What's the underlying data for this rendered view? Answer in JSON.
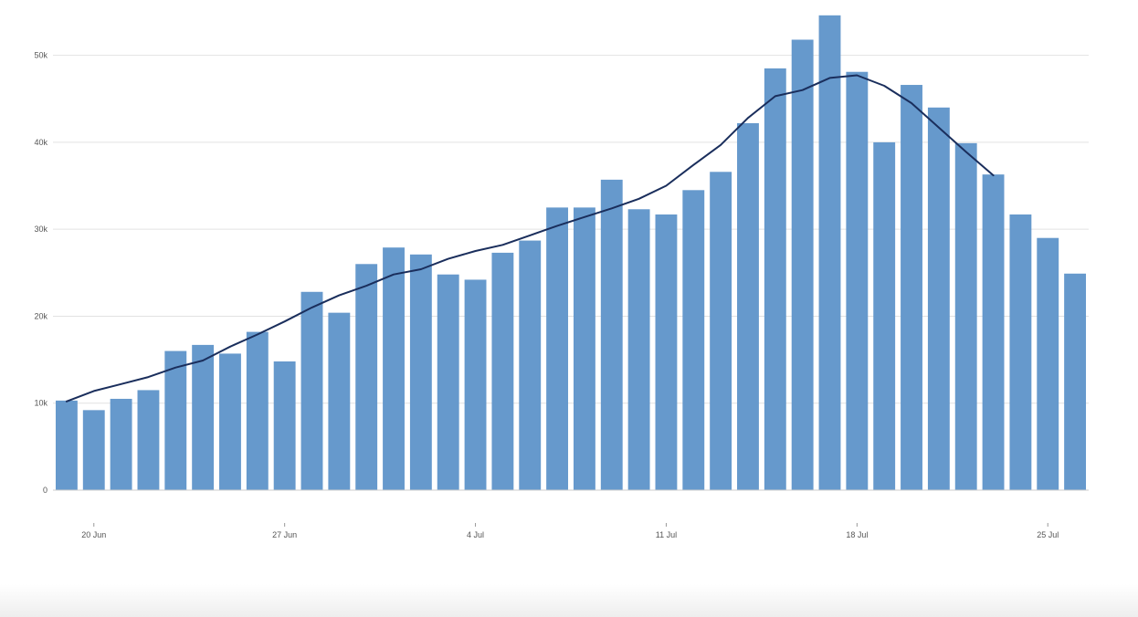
{
  "chart_data": {
    "type": "bar",
    "title": "",
    "xlabel": "",
    "ylabel": "",
    "ylim": [
      0,
      55000
    ],
    "y_ticks": [
      {
        "value": 0,
        "label": "0"
      },
      {
        "value": 10000,
        "label": "10k"
      },
      {
        "value": 20000,
        "label": "20k"
      },
      {
        "value": 30000,
        "label": "30k"
      },
      {
        "value": 40000,
        "label": "40k"
      },
      {
        "value": 50000,
        "label": "50k"
      }
    ],
    "x_ticks": [
      {
        "date": "2021-06-20",
        "label": "20 Jun"
      },
      {
        "date": "2021-06-27",
        "label": "27 Jun"
      },
      {
        "date": "2021-07-04",
        "label": "4 Jul"
      },
      {
        "date": "2021-07-11",
        "label": "11 Jul"
      },
      {
        "date": "2021-07-18",
        "label": "18 Jul"
      },
      {
        "date": "2021-07-25",
        "label": "25 Jul"
      }
    ],
    "grid": true,
    "legend": "none",
    "categories": [
      "2021-06-19",
      "2021-06-20",
      "2021-06-21",
      "2021-06-22",
      "2021-06-23",
      "2021-06-24",
      "2021-06-25",
      "2021-06-26",
      "2021-06-27",
      "2021-06-28",
      "2021-06-29",
      "2021-06-30",
      "2021-07-01",
      "2021-07-02",
      "2021-07-03",
      "2021-07-04",
      "2021-07-05",
      "2021-07-06",
      "2021-07-07",
      "2021-07-08",
      "2021-07-09",
      "2021-07-10",
      "2021-07-11",
      "2021-07-12",
      "2021-07-13",
      "2021-07-14",
      "2021-07-15",
      "2021-07-16",
      "2021-07-17",
      "2021-07-18",
      "2021-07-19",
      "2021-07-20",
      "2021-07-21",
      "2021-07-22",
      "2021-07-23",
      "2021-07-24",
      "2021-07-25",
      "2021-07-26"
    ],
    "series": [
      {
        "type": "bar",
        "color": "#6699cc",
        "values": [
          10300,
          9200,
          10500,
          11500,
          16000,
          16700,
          15700,
          18200,
          14800,
          22800,
          20400,
          26000,
          27900,
          27100,
          24800,
          24200,
          27300,
          28700,
          32500,
          32500,
          35700,
          32300,
          31700,
          34500,
          36600,
          42200,
          48500,
          51800,
          54600,
          48100,
          40000,
          46600,
          44000,
          39900,
          36300,
          31700,
          29000,
          24900
        ]
      },
      {
        "type": "line",
        "color": "#1a2e5c",
        "values": [
          10200,
          11400,
          12200,
          13000,
          14100,
          14900,
          16500,
          17900,
          19400,
          21000,
          22400,
          23500,
          24800,
          25400,
          26600,
          27500,
          28200,
          29300,
          30400,
          31400,
          32400,
          33500,
          35000,
          37400,
          39700,
          42800,
          45300,
          46000,
          47400,
          47700,
          46500,
          44500,
          41700,
          38900,
          36200,
          null,
          null,
          null
        ]
      }
    ]
  }
}
